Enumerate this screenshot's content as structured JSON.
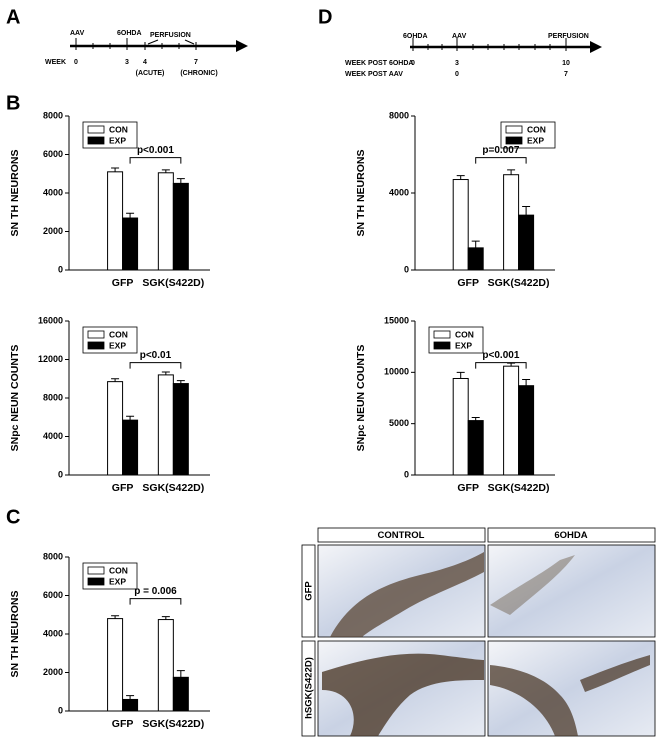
{
  "panel_labels": {
    "a": "A",
    "b": "B",
    "c": "C",
    "d": "D"
  },
  "timeline_a": {
    "row_label": "WEEK",
    "events": [
      "AAV",
      "6OHDA",
      "PERFUSION"
    ],
    "weeks": [
      "0",
      "3",
      "4",
      "7"
    ],
    "notes": [
      "(ACUTE)",
      "(CHRONIC)"
    ]
  },
  "timeline_d": {
    "events": [
      "6OHDA",
      "AAV",
      "PERFUSION"
    ],
    "rows": [
      {
        "label": "WEEK POST 6OHDA",
        "values": [
          "0",
          "3",
          "10"
        ]
      },
      {
        "label": "WEEK POST AAV",
        "values": [
          "0",
          "7"
        ]
      }
    ]
  },
  "chart_data": [
    {
      "type": "bar",
      "ylabel": "SN TH NEURONS",
      "categories": [
        "GFP",
        "SGK(S422D)"
      ],
      "series": [
        {
          "name": "CON",
          "color": "#ffffff",
          "values": [
            5100,
            5050
          ],
          "errors": [
            200,
            150
          ]
        },
        {
          "name": "EXP",
          "color": "#000000",
          "values": [
            2700,
            4500
          ],
          "errors": [
            250,
            250
          ]
        }
      ],
      "ylim": [
        0,
        8000
      ],
      "yticks": [
        0,
        2000,
        4000,
        6000,
        8000
      ],
      "legend": "upper left",
      "annotation": "p<0.001"
    },
    {
      "type": "bar",
      "ylabel": "SNpc NEUN COUNTS",
      "categories": [
        "GFP",
        "SGK(S422D)"
      ],
      "series": [
        {
          "name": "CON",
          "color": "#ffffff",
          "values": [
            9700,
            10400
          ],
          "errors": [
            300,
            300
          ]
        },
        {
          "name": "EXP",
          "color": "#000000",
          "values": [
            5700,
            9500
          ],
          "errors": [
            400,
            300
          ]
        }
      ],
      "ylim": [
        0,
        16000
      ],
      "yticks": [
        0,
        4000,
        8000,
        12000,
        16000
      ],
      "legend": "upper left",
      "annotation": "p<0.01"
    },
    {
      "type": "bar",
      "ylabel": "SN TH NEURONS",
      "categories": [
        "GFP",
        "SGK(S422D)"
      ],
      "series": [
        {
          "name": "CON",
          "color": "#ffffff",
          "values": [
            4800,
            4750
          ],
          "errors": [
            150,
            150
          ]
        },
        {
          "name": "EXP",
          "color": "#000000",
          "values": [
            600,
            1750
          ],
          "errors": [
            200,
            350
          ]
        }
      ],
      "ylim": [
        0,
        8000
      ],
      "yticks": [
        0,
        2000,
        4000,
        6000,
        8000
      ],
      "legend": "upper left",
      "annotation": "p = 0.006"
    },
    {
      "type": "bar",
      "ylabel": "SN TH NEURONS",
      "categories": [
        "GFP",
        "SGK(S422D)"
      ],
      "series": [
        {
          "name": "CON",
          "color": "#ffffff",
          "values": [
            4700,
            4950
          ],
          "errors": [
            200,
            250
          ]
        },
        {
          "name": "EXP",
          "color": "#000000",
          "values": [
            1150,
            2850
          ],
          "errors": [
            350,
            450
          ]
        }
      ],
      "ylim": [
        0,
        8000
      ],
      "yticks": [
        0,
        4000,
        8000
      ],
      "legend": "upper right",
      "annotation": "p=0.007"
    },
    {
      "type": "bar",
      "ylabel": "SNpc NEUN COUNTS",
      "categories": [
        "GFP",
        "SGK(S422D)"
      ],
      "series": [
        {
          "name": "CON",
          "color": "#ffffff",
          "values": [
            9400,
            10600
          ],
          "errors": [
            600,
            300
          ]
        },
        {
          "name": "EXP",
          "color": "#000000",
          "values": [
            5300,
            8700
          ],
          "errors": [
            300,
            600
          ]
        }
      ],
      "ylim": [
        0,
        15000
      ],
      "yticks": [
        0,
        5000,
        10000,
        15000
      ],
      "legend": "upper left",
      "annotation": "p<0.001"
    }
  ],
  "micrographs": {
    "columns": [
      "CONTROL",
      "6OHDA"
    ],
    "rows": [
      "GFP",
      "hSGK(S422D)"
    ]
  }
}
